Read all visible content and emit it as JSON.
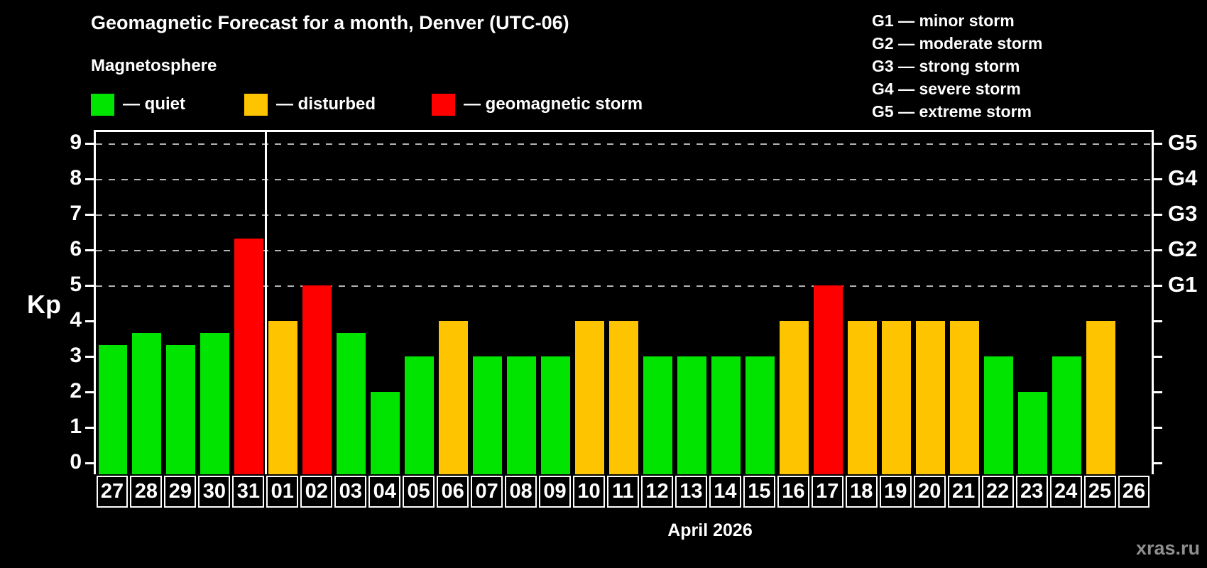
{
  "header": {
    "title": "Geomagnetic Forecast for a month, Denver (UTC-06)",
    "subtitle": "Magnetosphere"
  },
  "legend": [
    {
      "key": "quiet",
      "label": "— quiet",
      "color": "#00e400"
    },
    {
      "key": "disturbed",
      "label": "— disturbed",
      "color": "#ffc400"
    },
    {
      "key": "storm",
      "label": "— geomagnetic storm",
      "color": "#ff0000"
    }
  ],
  "g_scale_legend": [
    "G1 — minor storm",
    "G2 — moderate storm",
    "G3 — strong storm",
    "G4 — severe storm",
    "G5 — extreme storm"
  ],
  "axis": {
    "kp_label": "Kp",
    "kp_ticks": [
      0,
      1,
      2,
      3,
      4,
      5,
      6,
      7,
      8,
      9
    ],
    "g_labels": [
      {
        "kp": 5,
        "label": "G1"
      },
      {
        "kp": 6,
        "label": "G2"
      },
      {
        "kp": 7,
        "label": "G3"
      },
      {
        "kp": 8,
        "label": "G4"
      },
      {
        "kp": 9,
        "label": "G5"
      }
    ]
  },
  "footer": {
    "month_label": "April 2026",
    "watermark": "xras.ru"
  },
  "chart_data": {
    "type": "bar",
    "title": "Geomagnetic Forecast for a month, Denver (UTC-06)",
    "ylabel": "Kp",
    "xlabel": "April 2026",
    "ylim": [
      0,
      9.3
    ],
    "grid_kp": [
      5,
      6,
      7,
      8,
      9
    ],
    "legend_position": "top-left",
    "month_separator_after_index": 4,
    "categories": [
      "27",
      "28",
      "29",
      "30",
      "31",
      "01",
      "02",
      "03",
      "04",
      "05",
      "06",
      "07",
      "08",
      "09",
      "10",
      "11",
      "12",
      "13",
      "14",
      "15",
      "16",
      "17",
      "18",
      "19",
      "20",
      "21",
      "22",
      "23",
      "24",
      "25",
      "26"
    ],
    "values": [
      3.33,
      3.67,
      3.33,
      3.67,
      6.33,
      4,
      5,
      3.67,
      2,
      3,
      4,
      3,
      3,
      3,
      4,
      4,
      3,
      3,
      3,
      3,
      4,
      5,
      4,
      4,
      4,
      4,
      3,
      2,
      3,
      4,
      null
    ],
    "statuses": [
      "quiet",
      "quiet",
      "quiet",
      "quiet",
      "storm",
      "disturbed",
      "storm",
      "quiet",
      "quiet",
      "quiet",
      "disturbed",
      "quiet",
      "quiet",
      "quiet",
      "disturbed",
      "disturbed",
      "quiet",
      "quiet",
      "quiet",
      "quiet",
      "disturbed",
      "storm",
      "disturbed",
      "disturbed",
      "disturbed",
      "disturbed",
      "quiet",
      "quiet",
      "quiet",
      "disturbed",
      null
    ]
  }
}
